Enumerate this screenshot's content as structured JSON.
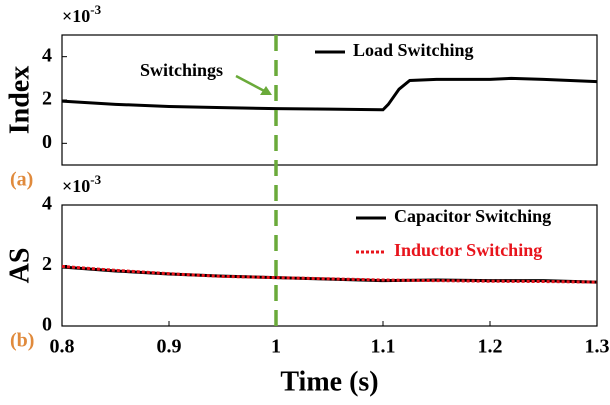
{
  "chart_data": [
    {
      "type": "line",
      "ylabel": "Index",
      "panel_label": "(a)",
      "multiplier": "×10",
      "multiplier_exp": "-3",
      "annotation": "Switchings",
      "vline": {
        "x": 1,
        "color": "#6aaa3a"
      },
      "xlim": [
        0.8,
        1.3
      ],
      "ylim": [
        -1,
        5
      ],
      "yticks": [
        0,
        2,
        4
      ],
      "legend": "upper right",
      "x": [
        0.8,
        0.85,
        0.9,
        0.95,
        1.0,
        1.05,
        1.1,
        1.105,
        1.115,
        1.125,
        1.15,
        1.2,
        1.22,
        1.25,
        1.3
      ],
      "series": [
        {
          "name": "Load Switching",
          "color": "#000000",
          "style": "solid",
          "values": [
            1.95,
            1.8,
            1.7,
            1.65,
            1.6,
            1.58,
            1.55,
            1.8,
            2.5,
            2.9,
            2.95,
            2.95,
            3.0,
            2.95,
            2.85
          ]
        }
      ]
    },
    {
      "type": "line",
      "ylabel": "AS",
      "xlabel": "Time (s)",
      "panel_label": "(b)",
      "multiplier": "×10",
      "multiplier_exp": "-3",
      "xlim": [
        0.8,
        1.3
      ],
      "xticks": [
        0.8,
        0.9,
        1,
        1.1,
        1.2,
        1.3
      ],
      "ylim": [
        0,
        4
      ],
      "yticks": [
        0,
        2,
        4
      ],
      "legend": "upper right",
      "x": [
        0.8,
        0.85,
        0.9,
        0.95,
        1.0,
        1.05,
        1.1,
        1.15,
        1.2,
        1.25,
        1.3
      ],
      "series": [
        {
          "name": "Capacitor Switching",
          "color": "#000000",
          "style": "solid",
          "values": [
            1.95,
            1.82,
            1.72,
            1.65,
            1.6,
            1.55,
            1.5,
            1.52,
            1.5,
            1.5,
            1.45
          ]
        },
        {
          "name": "Inductor Switching",
          "color": "#e8141c",
          "style": "dotted",
          "values": [
            1.97,
            1.84,
            1.73,
            1.64,
            1.6,
            1.56,
            1.52,
            1.5,
            1.48,
            1.47,
            1.45
          ]
        }
      ]
    }
  ]
}
